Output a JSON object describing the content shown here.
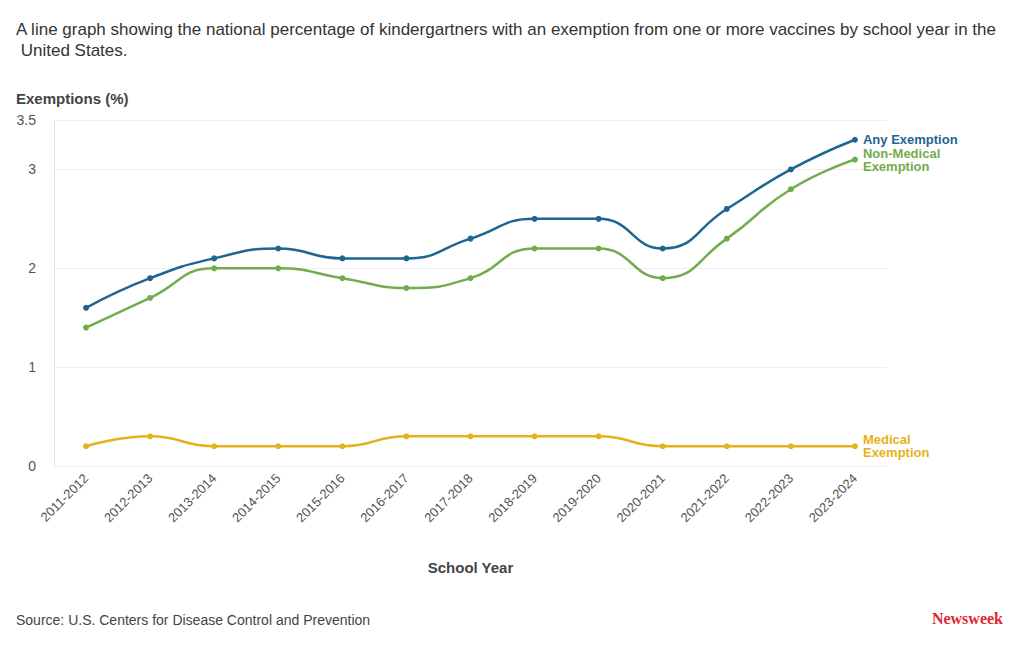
{
  "chart_data": {
    "type": "line",
    "title": "A line graph showing the national percentage of kindergartners with an exemption from one or more vaccines by school year in the United States.",
    "y_label": "Exemptions (%)",
    "x_label": "School Year",
    "categories": [
      "2011-2012",
      "2012-2013",
      "2013-2014",
      "2014-2015",
      "2015-2016",
      "2016-2017",
      "2017-2018",
      "2018-2019",
      "2019-2020",
      "2020-2021",
      "2021-2022",
      "2022-2023",
      "2023-2024"
    ],
    "series": [
      {
        "name": "Any Exemption",
        "color": "#1f6591",
        "values": [
          1.6,
          1.9,
          2.1,
          2.2,
          2.1,
          2.1,
          2.3,
          2.5,
          2.5,
          2.2,
          2.6,
          3.0,
          3.3
        ]
      },
      {
        "name": "Non-Medical Exemption",
        "color": "#72ac4d",
        "values": [
          1.4,
          1.7,
          2.0,
          2.0,
          1.9,
          1.8,
          1.9,
          2.2,
          2.2,
          1.9,
          2.3,
          2.8,
          3.1
        ]
      },
      {
        "name": "Medical Exemption",
        "color": "#e6b21b",
        "values": [
          0.2,
          0.3,
          0.2,
          0.2,
          0.2,
          0.3,
          0.3,
          0.3,
          0.3,
          0.2,
          0.2,
          0.2,
          0.2
        ]
      }
    ],
    "ylim": [
      0,
      3.5
    ],
    "yticks": [
      0,
      1,
      2,
      3
    ],
    "grid": true,
    "marker": "circle",
    "annotations": [
      "Source: U.S. Centers for Disease Control and Prevention",
      "Newsweek"
    ]
  }
}
